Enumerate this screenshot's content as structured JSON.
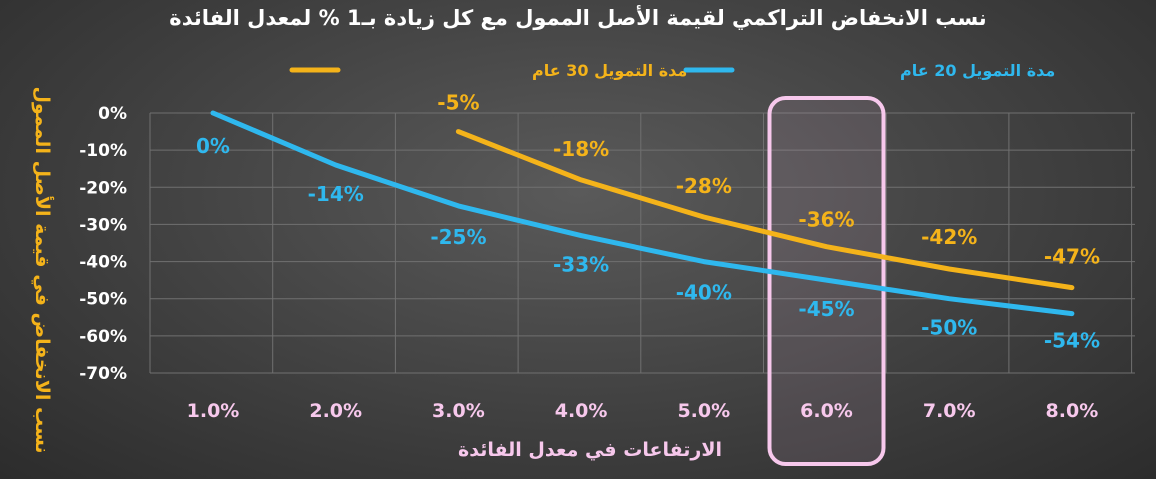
{
  "chart_data": {
    "type": "line",
    "title": "نسب الانخفاض التراكمي لقيمة الأصل الممول مع كل زيادة بـ1 % لمعدل الفائدة",
    "xlabel": "الارتفاعات في معدل الفائدة",
    "ylabel": "نسب الانخفاض في قيمة الأصل الممول",
    "categories": [
      "1.0%",
      "2.0%",
      "3.0%",
      "4.0%",
      "5.0%",
      "6.0%",
      "7.0%",
      "8.0%"
    ],
    "ylim": [
      -70,
      0
    ],
    "yticks": [
      "0%",
      "-10%",
      "-20%",
      "-30%",
      "-40%",
      "-50%",
      "-60%",
      "-70%"
    ],
    "grid": true,
    "legend_position": "top",
    "highlighted_category": "6.0%",
    "series": [
      {
        "name": "مدة التمويل 30 عام",
        "color": "#f4b31a",
        "values": [
          null,
          null,
          -5,
          -18,
          -28,
          -36,
          -42,
          -47
        ],
        "labels": [
          "",
          "",
          "-5%",
          "-18%",
          "-28%",
          "-36%",
          "-42%",
          "-47%"
        ]
      },
      {
        "name": "مدة التمويل 20 عام",
        "color": "#2fb8ee",
        "values": [
          0,
          -14,
          -25,
          -33,
          -40,
          -45,
          -50,
          -54
        ],
        "labels": [
          "0%",
          "-14%",
          "-25%",
          "-33%",
          "-40%",
          "-45%",
          "-50%",
          "-54%"
        ]
      }
    ],
    "colors": {
      "title": "#ffffff",
      "ylabel": "#f4b31a",
      "xlabel": "#f7c8ec",
      "xticks": "#f7c8ec",
      "highlight_border": "#f7c8ec",
      "grid": "#707070"
    }
  }
}
